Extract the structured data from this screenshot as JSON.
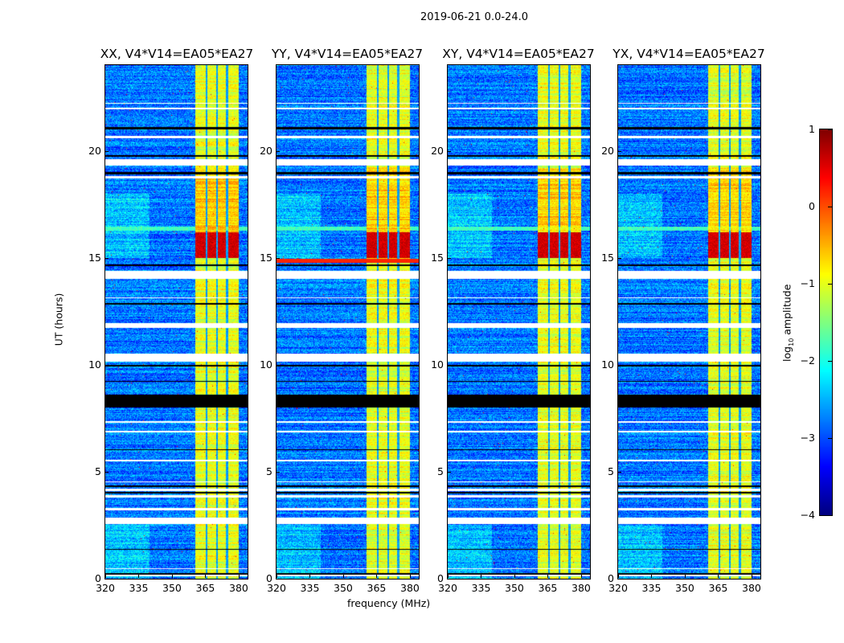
{
  "suptitle": "2019-06-21 0.0-24.0",
  "chart_data": {
    "type": "heatmap",
    "panels": [
      {
        "title": "XX, V4*V14=EA05*EA27"
      },
      {
        "title": "YY, V4*V14=EA05*EA27"
      },
      {
        "title": "XY, V4*V14=EA05*EA27"
      },
      {
        "title": "YX, V4*V14=EA05*EA27"
      }
    ],
    "xlabel": "frequency (MHz)",
    "ylabel": "UT (hours)",
    "xlim": [
      320,
      384
    ],
    "ylim": [
      0,
      24
    ],
    "xticks": [
      "320",
      "335",
      "350",
      "365",
      "380"
    ],
    "xtick_values": [
      320,
      335,
      350,
      365,
      380
    ],
    "yticks": [
      "0",
      "5",
      "10",
      "15",
      "20"
    ],
    "ytick_values": [
      0,
      5,
      10,
      15,
      20
    ],
    "colorbar": {
      "label_main": "log",
      "label_sub": "10",
      "label_rest": " amplitude",
      "range": [
        -4,
        1
      ],
      "ticks": [
        "−4",
        "−3",
        "−2",
        "−1",
        "0",
        "1"
      ],
      "tick_values": [
        -4,
        -3,
        -2,
        -1,
        0,
        1
      ],
      "colormap": "jet"
    },
    "active_band_mhz": [
      360.6,
      380
    ],
    "subband_gaps_mhz": [
      365.5,
      370.2,
      374.8
    ],
    "flagged_hours": [
      [
        0.1,
        0.2
      ],
      [
        0.45,
        0.5
      ],
      [
        2.55,
        2.85
      ],
      [
        3.2,
        3.3
      ],
      [
        3.8,
        3.9
      ],
      [
        4.1,
        4.2
      ],
      [
        4.5,
        4.55
      ],
      [
        5.5,
        5.56
      ],
      [
        6.85,
        6.9
      ],
      [
        7.3,
        7.35
      ],
      [
        10.15,
        10.5
      ],
      [
        11.7,
        11.95
      ],
      [
        13.1,
        13.15
      ],
      [
        14.0,
        14.4
      ],
      [
        18.7,
        18.8
      ],
      [
        19.3,
        19.6
      ],
      [
        20.6,
        20.7
      ],
      [
        21.95,
        22.0
      ],
      [
        22.2,
        22.25
      ]
    ],
    "black_rows_hours": [
      [
        0.2,
        0.25
      ],
      [
        1.35,
        1.4
      ],
      [
        4.0,
        4.05
      ],
      [
        4.3,
        4.35
      ],
      [
        6.0,
        6.05
      ],
      [
        8.0,
        8.6
      ],
      [
        9.2,
        9.25
      ],
      [
        9.9,
        10.0
      ],
      [
        11.85,
        11.9
      ],
      [
        12.8,
        12.9
      ],
      [
        14.6,
        14.7
      ],
      [
        18.9,
        19.0
      ],
      [
        19.7,
        19.8
      ],
      [
        21.0,
        21.1
      ]
    ],
    "rfi_burst_hours": [
      15.0,
      16.2
    ],
    "rfi_burst_level": 0.6,
    "band_level": -1.0,
    "background_level": -2.8
  }
}
